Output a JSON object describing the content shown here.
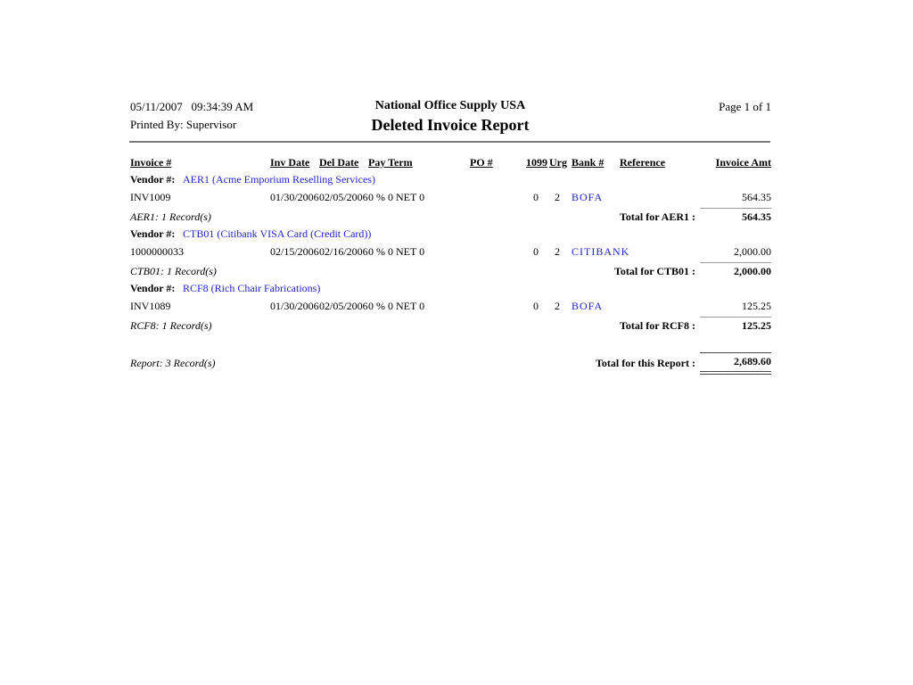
{
  "page_header": {
    "datetime": "05/11/2007   09:34:39 AM",
    "printed_by": "Printed By: Supervisor",
    "company": "National Office Supply USA",
    "report_title": "Deleted Invoice Report",
    "page_info": "Page 1 of 1"
  },
  "columns": {
    "invoice": "Invoice #",
    "inv_date": "Inv Date",
    "del_date": "Del Date",
    "pay_term": "Pay Term",
    "po": "PO #",
    "t1099": "1099",
    "urg": "Urg",
    "bank": "Bank #",
    "reference": "Reference",
    "amount": "Invoice Amt"
  },
  "vendor_label": "Vendor #:",
  "groups": [
    {
      "vendor": "AER1 (Acme Emporium Reselling Services)",
      "row": {
        "invoice": "INV1009",
        "inv_date": "01/30/2006",
        "del_date": "02/05/2006",
        "pay_term": "0 % 0 NET 0",
        "t1099": "0",
        "urg": "2",
        "bank": "BOFA",
        "amount": "564.35"
      },
      "record_count": "AER1: 1 Record(s)",
      "total_label": "Total for AER1 :",
      "total": "564.35"
    },
    {
      "vendor": "CTB01 (Citibank VISA Card (Credit Card))",
      "row": {
        "invoice": "1000000033",
        "inv_date": "02/15/2006",
        "del_date": "02/16/2006",
        "pay_term": "0 % 0 NET 0",
        "t1099": "0",
        "urg": "2",
        "bank": "CITIBANK",
        "amount": "2,000.00"
      },
      "record_count": "CTB01: 1 Record(s)",
      "total_label": "Total for CTB01 :",
      "total": "2,000.00"
    },
    {
      "vendor": "RCF8 (Rich Chair Fabrications)",
      "row": {
        "invoice": "INV1089",
        "inv_date": "01/30/2006",
        "del_date": "02/05/2006",
        "pay_term": "0 % 0 NET 0",
        "t1099": "0",
        "urg": "2",
        "bank": "BOFA",
        "amount": "125.25"
      },
      "record_count": "RCF8: 1 Record(s)",
      "total_label": "Total for RCF8 :",
      "total": "125.25"
    }
  ],
  "report_footer": {
    "record_count": "Report: 3 Record(s)",
    "total_label": "Total for this Report :",
    "total": "2,689.60"
  },
  "colors": {
    "link_blue": "#2222cc",
    "header_rule_gray": "#7a7a7a",
    "subtotal_line_gray": "#9a9a9a",
    "grand_total_line_gray": "#4a4a4a"
  }
}
